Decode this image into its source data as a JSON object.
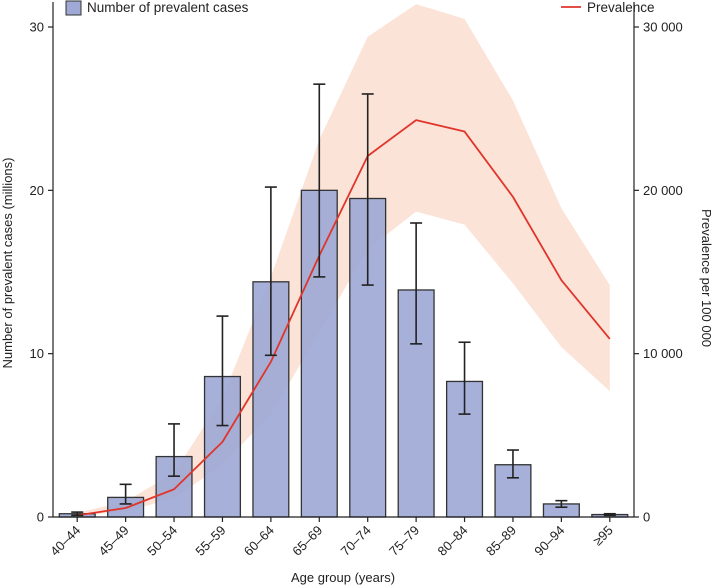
{
  "chart_data": {
    "type": "bar+line",
    "title": "",
    "xlabel": "Age group (years)",
    "ylabel_left": "Number of prevalent cases (millions)",
    "ylabel_right": "Prevalence per 100 000",
    "categories": [
      "40–44",
      "45–49",
      "50–54",
      "55–59",
      "60–64",
      "65–69",
      "70–74",
      "75–79",
      "80–84",
      "85–89",
      "90–94",
      "≥95"
    ],
    "ylim_left": [
      0,
      30
    ],
    "ylim_right": [
      0,
      30000
    ],
    "yticks_left": [
      "0",
      "10",
      "20",
      "30"
    ],
    "yticks_right": [
      "0",
      "10 000",
      "20 000",
      "30 000"
    ],
    "series": [
      {
        "name": "Number of prevalent cases",
        "type": "bar",
        "axis": "left",
        "color": "#9ea9d6",
        "values": [
          0.2,
          1.2,
          3.7,
          8.6,
          14.4,
          20.0,
          19.5,
          13.9,
          8.3,
          3.2,
          0.8,
          0.15
        ],
        "err_low": [
          0.1,
          0.8,
          2.5,
          5.6,
          9.9,
          14.7,
          14.2,
          10.6,
          6.3,
          2.4,
          0.6,
          0.1
        ],
        "err_high": [
          0.3,
          2.0,
          5.7,
          12.3,
          20.2,
          26.5,
          25.9,
          18.0,
          10.7,
          4.1,
          1.0,
          0.2
        ]
      },
      {
        "name": "Prevalence",
        "type": "line",
        "axis": "right",
        "color": "#e0352b",
        "band_color": "#fbd9c9",
        "values": [
          100,
          550,
          1700,
          4600,
          9500,
          16000,
          22100,
          24300,
          23600,
          19600,
          14500,
          10900
        ],
        "band_low": [
          50,
          350,
          1150,
          3200,
          6300,
          11300,
          16400,
          18700,
          17900,
          14300,
          10400,
          7700
        ],
        "band_high": [
          250,
          950,
          2700,
          7300,
          14700,
          23100,
          29400,
          31400,
          30500,
          25500,
          18900,
          14200
        ]
      }
    ],
    "legend": {
      "bar_label": "Number of prevalent cases",
      "line_label": "Prevalence"
    }
  }
}
